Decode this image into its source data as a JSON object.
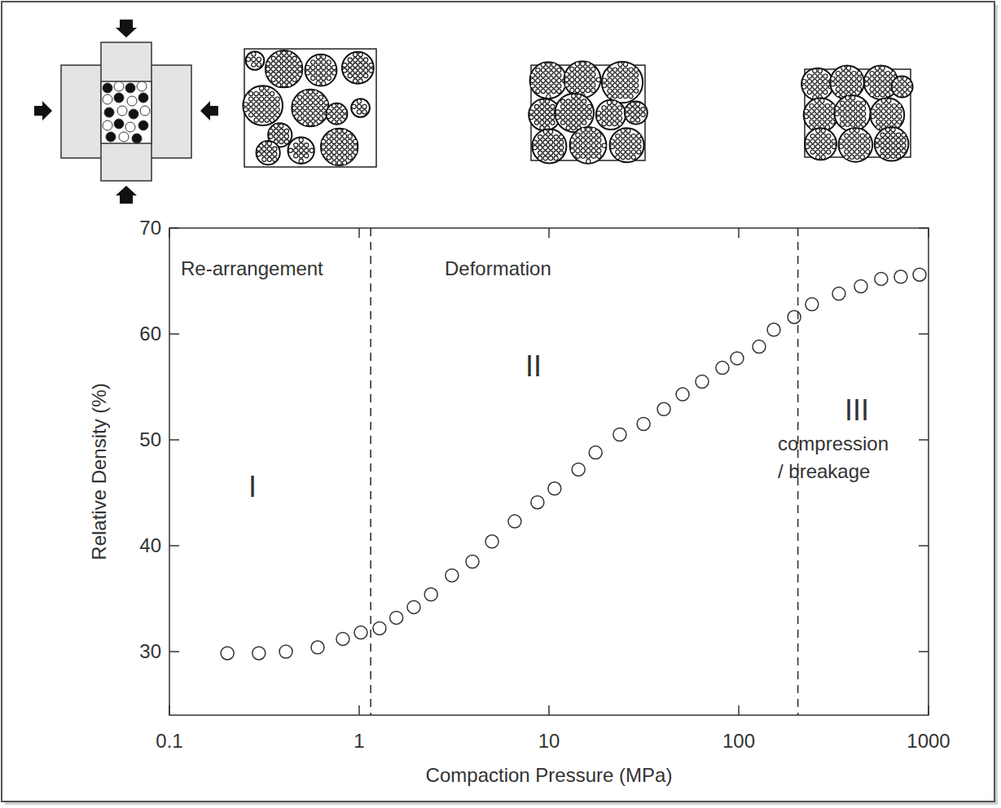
{
  "chart_data": {
    "type": "scatter",
    "x_label": "Compaction Pressure (MPa)",
    "y_label": "Relative Density (%)",
    "log": "x",
    "xlim": [
      0.1,
      1000
    ],
    "xticks": [
      0.1,
      1,
      10,
      100,
      1000
    ],
    "ylim": [
      24,
      70
    ],
    "yticks": [
      30,
      40,
      50,
      60,
      70
    ],
    "marker": "circle",
    "color": "#333333",
    "grid": false,
    "x": [
      0.202,
      0.296,
      0.411,
      0.604,
      0.82,
      1.02,
      1.28,
      1.57,
      1.94,
      2.39,
      3.08,
      3.95,
      5.01,
      6.6,
      8.7,
      10.7,
      14.3,
      17.6,
      23.6,
      31.5,
      40.3,
      50.6,
      64.1,
      82,
      98,
      128,
      153,
      196,
      243,
      337,
      440,
      563,
      714,
      897
    ],
    "values": [
      29.85,
      29.85,
      30.0,
      30.4,
      31.2,
      31.8,
      32.2,
      33.2,
      34.2,
      35.4,
      37.2,
      38.5,
      40.4,
      42.3,
      44.1,
      45.4,
      47.2,
      48.8,
      50.5,
      51.5,
      52.9,
      54.3,
      55.5,
      56.8,
      57.7,
      58.8,
      60.4,
      61.6,
      62.8,
      63.8,
      64.5,
      65.2,
      65.4,
      65.6
    ],
    "boundaries": [
      1.15,
      205
    ],
    "regions": [
      {
        "name": "Re-arrangement",
        "numeral": "I"
      },
      {
        "name": "Deformation",
        "numeral": "II"
      },
      {
        "name": "compression / breakage",
        "numeral": "III"
      }
    ]
  }
}
